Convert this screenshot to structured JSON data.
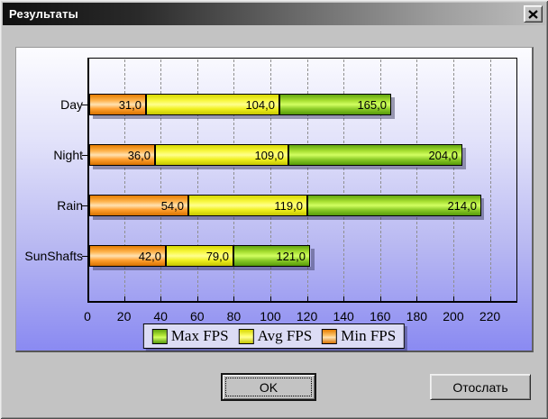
{
  "window": {
    "title": "Результаты"
  },
  "buttons": {
    "ok": "OK",
    "send": "Отослать"
  },
  "chart_data": {
    "type": "bar",
    "orientation": "horizontal",
    "title": "",
    "xlabel": "",
    "ylabel": "",
    "categories": [
      "Day",
      "Night",
      "Rain",
      "SunShafts"
    ],
    "series": [
      {
        "name": "Min FPS",
        "color_key": "min",
        "values": [
          31.0,
          36.0,
          54.0,
          42.0
        ]
      },
      {
        "name": "Avg FPS",
        "color_key": "avg",
        "values": [
          104.0,
          109.0,
          119.0,
          79.0
        ]
      },
      {
        "name": "Max FPS",
        "color_key": "max",
        "values": [
          165.0,
          204.0,
          214.0,
          121.0
        ]
      }
    ],
    "x_ticks": [
      0,
      20,
      40,
      60,
      80,
      100,
      120,
      140,
      160,
      180,
      200,
      220
    ],
    "xlim": [
      0,
      235
    ],
    "decimal_separator": ",",
    "grid": "vertical-dashed",
    "legend_position": "bottom",
    "legend": [
      {
        "label": "Max FPS",
        "key": "max"
      },
      {
        "label": "Avg FPS",
        "key": "avg"
      },
      {
        "label": "Min FPS",
        "key": "min"
      }
    ],
    "colors": {
      "max": "#8ccb28",
      "avg": "#f0f020",
      "min": "#ffa030"
    }
  }
}
